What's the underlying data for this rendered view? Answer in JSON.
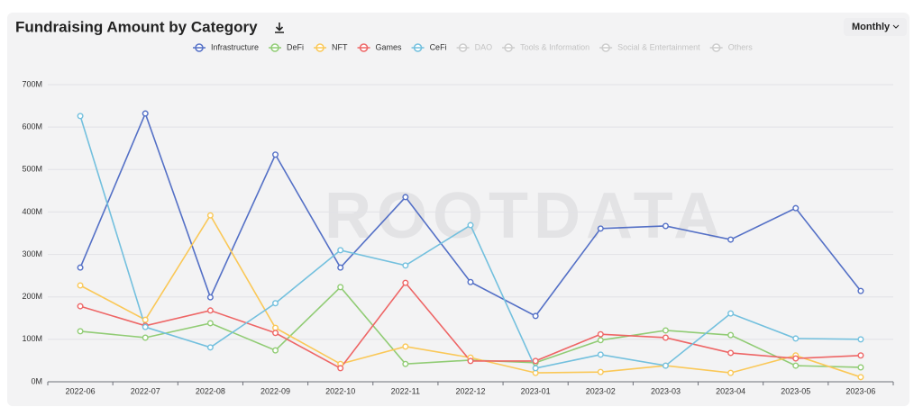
{
  "chart_data": {
    "type": "line",
    "title": "Fundraising Amount by Category",
    "period_selector": "Monthly",
    "watermark": "ROOTDATA",
    "categories": [
      "2022-06",
      "2022-07",
      "2022-08",
      "2022-09",
      "2022-10",
      "2022-11",
      "2022-12",
      "2023-01",
      "2023-02",
      "2023-03",
      "2023-04",
      "2023-05",
      "2023-06"
    ],
    "series": [
      {
        "name": "Infrastructure",
        "color": "#5470c6",
        "values": [
          269,
          632,
          199,
          535,
          269,
          435,
          235,
          155,
          361,
          367,
          335,
          409,
          214
        ]
      },
      {
        "name": "DeFi",
        "color": "#91cc75",
        "values": [
          119,
          104,
          138,
          74,
          223,
          42,
          51,
          45,
          98,
          121,
          110,
          38,
          34
        ]
      },
      {
        "name": "NFT",
        "color": "#fac858",
        "values": [
          227,
          146,
          392,
          127,
          42,
          83,
          57,
          21,
          23,
          38,
          21,
          62,
          11
        ]
      },
      {
        "name": "Games",
        "color": "#ee6666",
        "values": [
          178,
          132,
          168,
          115,
          32,
          233,
          49,
          49,
          112,
          104,
          68,
          55,
          62
        ]
      },
      {
        "name": "CeFi",
        "color": "#73c0de",
        "values": [
          626,
          129,
          81,
          185,
          310,
          274,
          369,
          32,
          64,
          38,
          161,
          102,
          100
        ]
      }
    ],
    "hidden_series": [
      "DAO",
      "Tools & Information",
      "Social & Entertainment",
      "Others"
    ],
    "ylim": [
      0,
      700
    ],
    "yticks": [
      {
        "value": 0,
        "label": "0M"
      },
      {
        "value": 100,
        "label": "100M"
      },
      {
        "value": 200,
        "label": "200M"
      },
      {
        "value": 300,
        "label": "300M"
      },
      {
        "value": 400,
        "label": "400M"
      },
      {
        "value": 500,
        "label": "500M"
      },
      {
        "value": 600,
        "label": "600M"
      },
      {
        "value": 700,
        "label": "700M"
      }
    ],
    "grid": true
  }
}
